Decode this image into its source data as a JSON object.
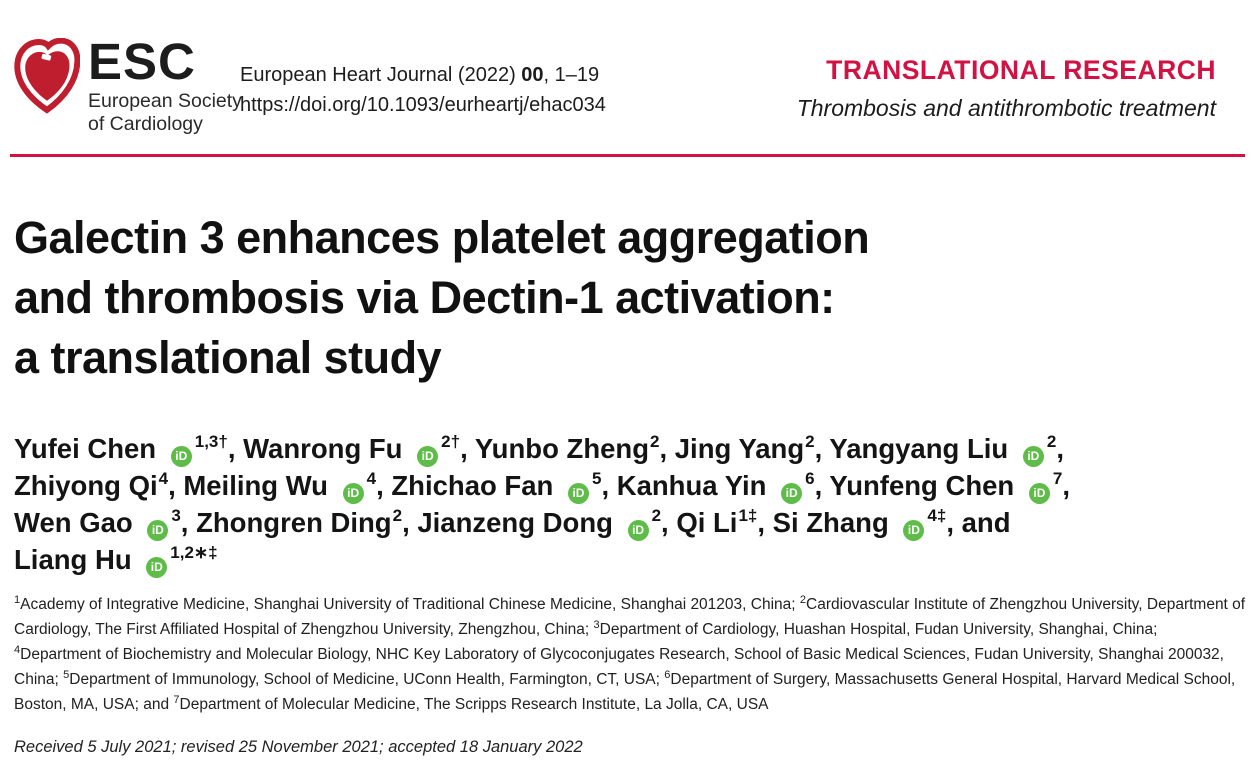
{
  "journal": {
    "logo": {
      "abbr": "ESC",
      "name_line1": "European Society",
      "name_line2": "of Cardiology"
    },
    "citation_prefix": "European Heart Journal (2022) ",
    "citation_issue": "00",
    "citation_pages": ", 1–19",
    "doi": "https://doi.org/10.1093/eurheartj/ehac034",
    "category": "TRANSLATIONAL RESEARCH",
    "subcategory": "Thrombosis and antithrombotic treatment"
  },
  "article": {
    "title_lines": [
      "Galectin 3 enhances platelet aggregation",
      "and thrombosis via Dectin-1 activation:",
      "a translational study"
    ],
    "and_label": "and ",
    "authors": [
      {
        "name": "Yufei Chen",
        "orcid": true,
        "sup": "1,3†"
      },
      {
        "name": "Wanrong Fu",
        "orcid": true,
        "sup": "2†"
      },
      {
        "name": "Yunbo Zheng",
        "orcid": false,
        "sup": "2"
      },
      {
        "name": "Jing Yang",
        "orcid": false,
        "sup": "2"
      },
      {
        "name": "Yangyang Liu",
        "orcid": true,
        "sup": "2"
      },
      {
        "name": "Zhiyong Qi",
        "orcid": false,
        "sup": "4"
      },
      {
        "name": "Meiling Wu",
        "orcid": true,
        "sup": "4"
      },
      {
        "name": "Zhichao Fan",
        "orcid": true,
        "sup": "5"
      },
      {
        "name": "Kanhua Yin",
        "orcid": true,
        "sup": "6"
      },
      {
        "name": "Yunfeng Chen",
        "orcid": true,
        "sup": "7"
      },
      {
        "name": "Wen Gao",
        "orcid": true,
        "sup": "3"
      },
      {
        "name": "Zhongren Ding",
        "orcid": false,
        "sup": "2"
      },
      {
        "name": "Jianzeng Dong",
        "orcid": true,
        "sup": "2"
      },
      {
        "name": "Qi Li",
        "orcid": false,
        "sup": "1‡"
      },
      {
        "name": "Si Zhang",
        "orcid": true,
        "sup": "4‡"
      },
      {
        "name": "Liang Hu",
        "orcid": true,
        "sup": "1,2∗‡"
      }
    ],
    "affiliations": [
      {
        "sup": "1",
        "text": "Academy of Integrative Medicine, Shanghai University of Traditional Chinese Medicine, Shanghai 201203, China; "
      },
      {
        "sup": "2",
        "text": "Cardiovascular Institute of Zhengzhou University, Department of Cardiology, The First Affiliated Hospital of Zhengzhou University, Zhengzhou, China; "
      },
      {
        "sup": "3",
        "text": "Department of Cardiology, Huashan Hospital, Fudan University, Shanghai, China; "
      },
      {
        "sup": "4",
        "text": "Department of Biochemistry and Molecular Biology, NHC Key Laboratory of Glycoconjugates Research, School of Basic Medical Sciences, Fudan University, Shanghai 200032, China; "
      },
      {
        "sup": "5",
        "text": "Department of Immunology, School of Medicine, UConn Health, Farmington, CT, USA; "
      },
      {
        "sup": "6",
        "text": "Department of Surgery, Massachusetts General Hospital, Harvard Medical School, Boston, MA, USA; and "
      },
      {
        "sup": "7",
        "text": "Department of Molecular Medicine, The Scripps Research Institute, La Jolla, CA, USA"
      }
    ],
    "received": "Received 5 July 2021; revised 25 November 2021; accepted 18 January 2022"
  },
  "icons": {
    "orcid_text": "iD"
  },
  "colors": {
    "accent_red": "#d11242",
    "heart_red": "#be1e2d",
    "orcid_green": "#5fbc49"
  }
}
